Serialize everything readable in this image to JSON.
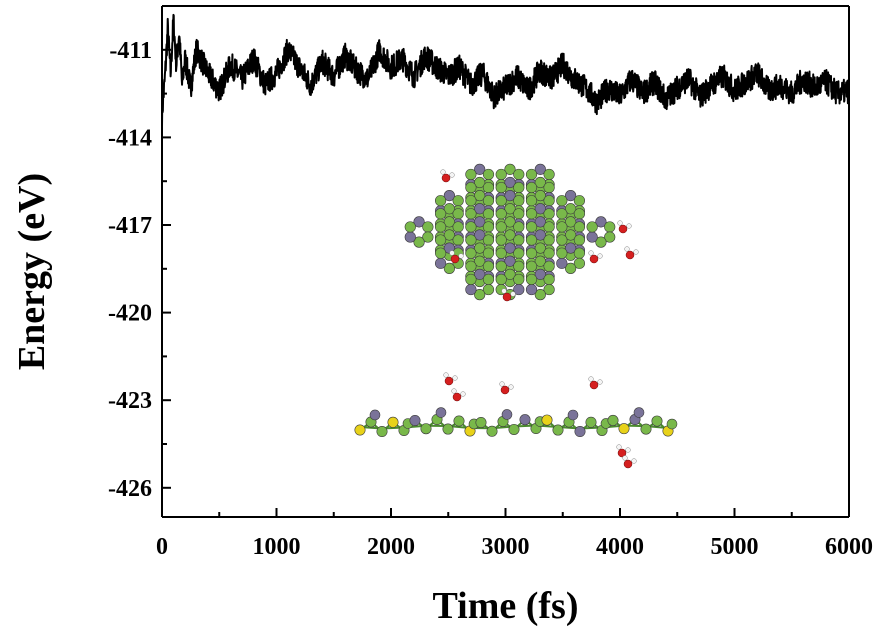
{
  "chart_data": {
    "type": "line",
    "xlabel": "Time (fs)",
    "ylabel": "Energy (eV)",
    "xlim": [
      0,
      6000
    ],
    "ylim": [
      -427,
      -409.5
    ],
    "x_ticks": [
      0,
      1000,
      2000,
      3000,
      4000,
      5000,
      6000
    ],
    "y_ticks": [
      -411,
      -414,
      -417,
      -420,
      -423,
      -426
    ],
    "grid": false,
    "legend": "none",
    "series": [
      {
        "color": "#000000",
        "x": [
          0,
          25,
          50,
          75,
          100,
          125,
          150,
          175,
          200,
          250,
          300,
          400,
          500,
          600,
          700,
          800,
          900,
          1000,
          1100,
          1200,
          1300,
          1400,
          1500,
          1600,
          1700,
          1800,
          1900,
          2000,
          2100,
          2200,
          2300,
          2400,
          2500,
          2600,
          2700,
          2800,
          2900,
          3000,
          3100,
          3200,
          3300,
          3400,
          3500,
          3600,
          3700,
          3800,
          3900,
          4000,
          4100,
          4200,
          4300,
          4400,
          4500,
          4600,
          4700,
          4800,
          4900,
          5000,
          5100,
          5200,
          5300,
          5400,
          5500,
          5600,
          5700,
          5800,
          5900,
          6000
        ],
        "y": [
          -413.2,
          -412.0,
          -410.3,
          -411.8,
          -410.0,
          -411.5,
          -410.4,
          -412.2,
          -411.3,
          -412.3,
          -411.0,
          -411.8,
          -412.4,
          -411.5,
          -412.0,
          -411.3,
          -412.2,
          -411.8,
          -411.0,
          -411.6,
          -412.2,
          -411.4,
          -411.9,
          -411.2,
          -411.7,
          -412.0,
          -411.0,
          -411.6,
          -411.3,
          -411.9,
          -411.2,
          -411.6,
          -411.9,
          -411.6,
          -412.2,
          -411.8,
          -412.6,
          -412.3,
          -411.9,
          -412.4,
          -411.7,
          -412.0,
          -411.5,
          -412.0,
          -412.3,
          -412.8,
          -412.3,
          -412.6,
          -412.0,
          -412.5,
          -412.1,
          -412.7,
          -412.3,
          -412.0,
          -412.6,
          -412.2,
          -411.9,
          -412.4,
          -412.1,
          -411.8,
          -412.4,
          -412.2,
          -412.5,
          -412.0,
          -412.3,
          -412.1,
          -412.5,
          -412.4
        ]
      }
    ]
  }
}
